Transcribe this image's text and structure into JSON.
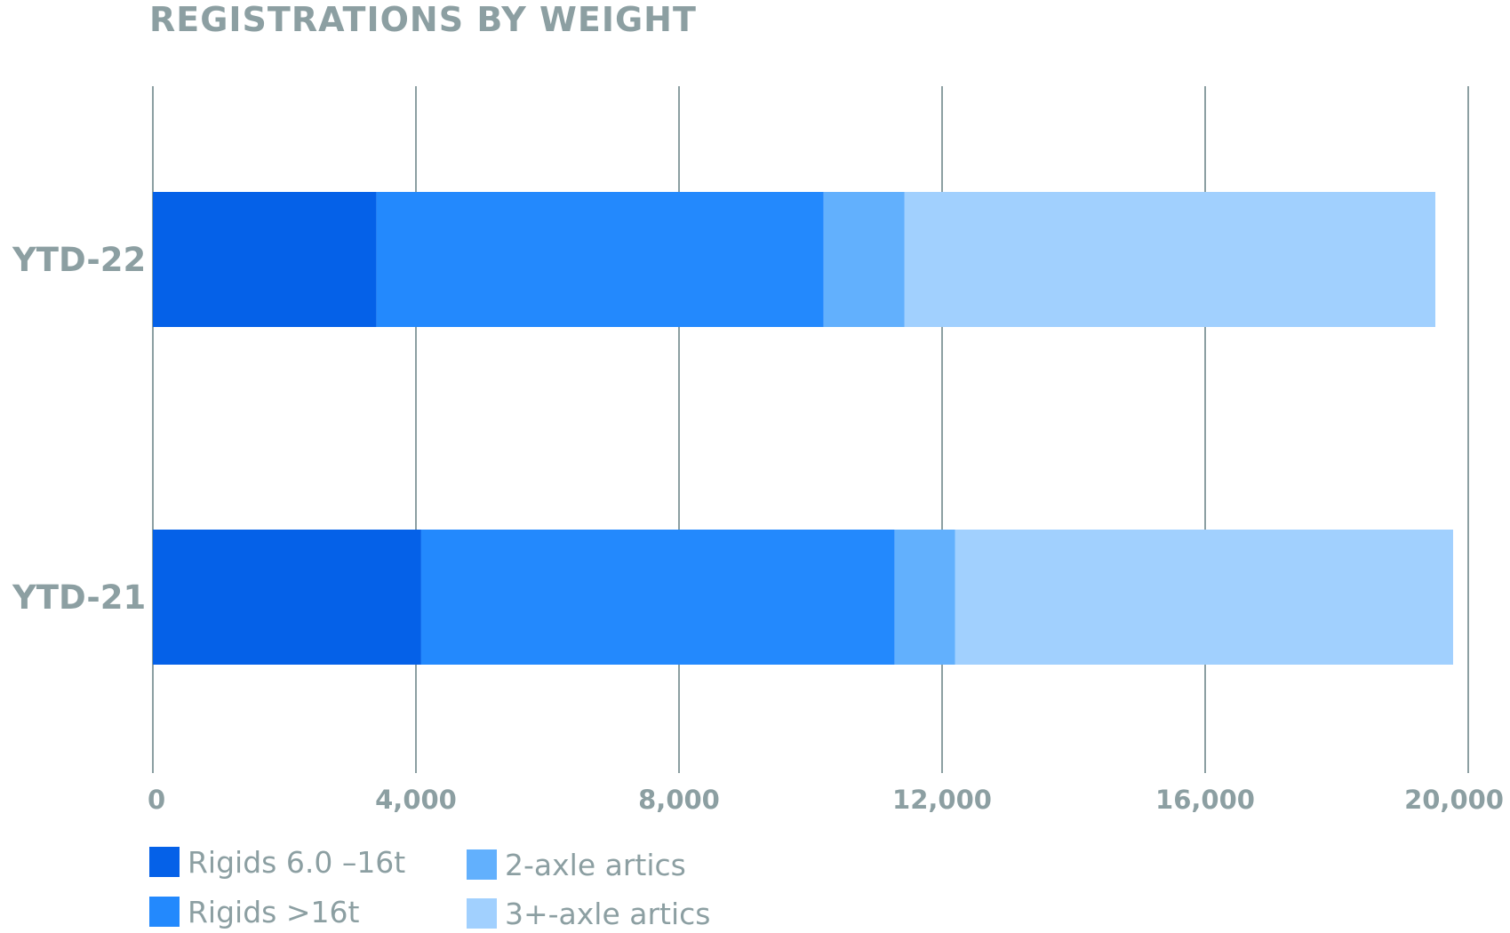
{
  "chart_data": {
    "type": "bar",
    "orientation": "horizontal",
    "stacked": true,
    "title": "REGISTRATIONS BY WEIGHT",
    "xlabel": "",
    "ylabel": "",
    "xlim": [
      0,
      20000
    ],
    "x_ticks": [
      "0",
      "4,000",
      "8,000",
      "12,000",
      "16,000",
      "20,000"
    ],
    "x_tick_values": [
      0,
      4000,
      8000,
      12000,
      16000,
      20000
    ],
    "grid": "vertical",
    "legend_position": "bottom-left",
    "categories": [
      "YTD-22",
      "YTD-21"
    ],
    "series": [
      {
        "name": "Rigids 6.0 –16t",
        "color": "#0561e8",
        "values": [
          3400,
          4080
        ]
      },
      {
        "name": "Rigids >16t",
        "color": "#2389fd",
        "values": [
          6800,
          7200
        ]
      },
      {
        "name": "2-axle artics",
        "color": "#62b0fd",
        "values": [
          1230,
          920
        ]
      },
      {
        "name": "3+-axle artics",
        "color": "#a1d0fe",
        "values": [
          8070,
          7570
        ]
      }
    ]
  },
  "legend": {
    "items": [
      {
        "label": "Rigids 6.0 –16t",
        "color": "#0561e8"
      },
      {
        "label": "2-axle artics",
        "color": "#62b0fd"
      },
      {
        "label": "Rigids >16t",
        "color": "#2389fd"
      },
      {
        "label": "3+-axle artics",
        "color": "#a1d0fe"
      }
    ]
  }
}
